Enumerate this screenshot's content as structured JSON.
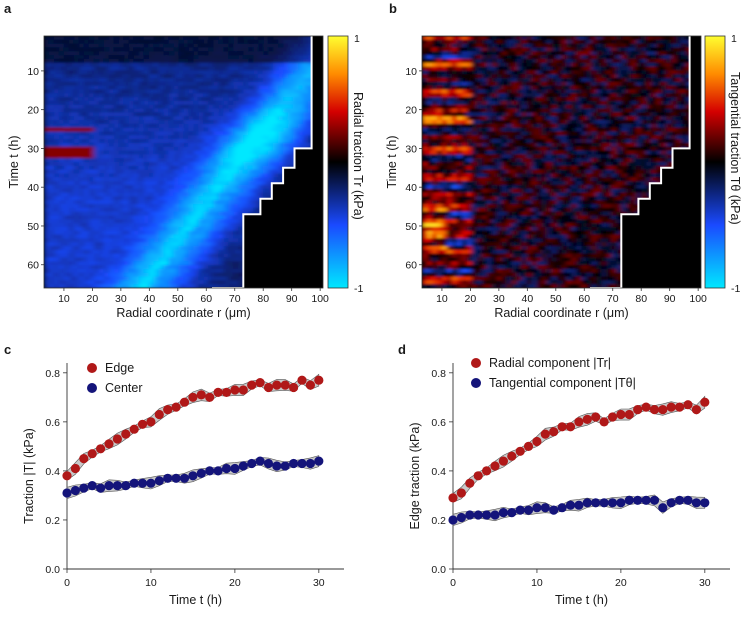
{
  "panels": {
    "a": {
      "letter": "a",
      "type": "heatmap",
      "xlabel": "Radial coordinate  r (μm)",
      "ylabel": "Time  t (h)",
      "colorbar_label": "Radial traction  Tr (kPa)",
      "colorbar_max": "1",
      "colorbar_min": "-1",
      "colormap": [
        "#00e8ff",
        "#1a4aff",
        "#000000",
        "#d40000",
        "#ff8c00",
        "#ffff30"
      ],
      "x_ticks": [
        10,
        20,
        30,
        40,
        50,
        60,
        70,
        80,
        90,
        100
      ],
      "y_ticks": [
        10,
        20,
        30,
        40,
        50,
        60
      ],
      "xlim": [
        3,
        101
      ],
      "ylim": [
        1,
        66
      ],
      "boundary_r": [
        97,
        97,
        91,
        87,
        83,
        79,
        73,
        62
      ],
      "boundary_t": [
        1,
        25,
        30,
        35,
        39,
        43,
        47,
        66
      ]
    },
    "b": {
      "letter": "b",
      "type": "heatmap",
      "xlabel": "Radial coordinate  r (μm)",
      "ylabel": "Time  t (h)",
      "colorbar_label": "Tangential traction  Tθ (kPa)",
      "colorbar_max": "1",
      "colorbar_min": "-1",
      "x_ticks": [
        10,
        20,
        30,
        40,
        50,
        60,
        70,
        80,
        90,
        100
      ],
      "y_ticks": [
        10,
        20,
        30,
        40,
        50,
        60
      ],
      "xlim": [
        3,
        101
      ],
      "ylim": [
        1,
        66
      ]
    },
    "c": {
      "letter": "c",
      "xlabel": "Time   t (h)",
      "ylabel": "Traction  |T| (kPa)",
      "x_ticks": [
        0,
        10,
        20,
        30
      ],
      "y_ticks": [
        0,
        0.2,
        0.4,
        0.6,
        0.8
      ],
      "xlim": [
        0,
        33
      ],
      "ylim": [
        0,
        0.84
      ]
    },
    "d": {
      "letter": "d",
      "xlabel": "Time   t (h)",
      "ylabel": "Edge traction (kPa)",
      "x_ticks": [
        0,
        10,
        20,
        30
      ],
      "y_ticks": [
        0,
        0.2,
        0.4,
        0.6,
        0.8
      ],
      "xlim": [
        0,
        33
      ],
      "ylim": [
        0,
        0.84
      ]
    }
  },
  "chart_data": [
    {
      "type": "heatmap",
      "title": "a",
      "xlabel": "Radial coordinate r (μm)",
      "ylabel": "Time t (h)",
      "colorbar": "Radial traction Tr (kPa)",
      "clim": [
        -1,
        1
      ],
      "xlim": [
        3,
        101
      ],
      "ylim": [
        1,
        66
      ],
      "description_values": {
        "peak_band_r_at_t": [
          [
            18,
            86
          ],
          [
            25,
            80
          ],
          [
            32,
            74
          ],
          [
            40,
            66
          ],
          [
            48,
            58
          ],
          [
            58,
            42
          ]
        ],
        "peak_value_approx": -0.85
      }
    },
    {
      "type": "heatmap",
      "title": "b",
      "xlabel": "Radial coordinate r (μm)",
      "ylabel": "Time t (h)",
      "colorbar": "Tangential traction Tθ (kPa)",
      "clim": [
        -1,
        1
      ],
      "xlim": [
        3,
        101
      ],
      "ylim": [
        1,
        66
      ]
    },
    {
      "type": "scatter",
      "title": "c",
      "xlabel": "Time t (h)",
      "ylabel": "Traction |T| (kPa)",
      "xlim": [
        0,
        33
      ],
      "ylim": [
        0,
        0.84
      ],
      "x": [
        0,
        1,
        2,
        3,
        4,
        5,
        6,
        7,
        8,
        9,
        10,
        11,
        12,
        13,
        14,
        15,
        16,
        17,
        18,
        19,
        20,
        21,
        22,
        23,
        24,
        25,
        26,
        27,
        28,
        29,
        30
      ],
      "series": [
        {
          "name": "Edge",
          "color": "#b01818",
          "values": [
            0.38,
            0.41,
            0.45,
            0.47,
            0.49,
            0.51,
            0.53,
            0.55,
            0.57,
            0.59,
            0.6,
            0.63,
            0.65,
            0.66,
            0.68,
            0.7,
            0.71,
            0.7,
            0.72,
            0.72,
            0.73,
            0.73,
            0.75,
            0.76,
            0.74,
            0.75,
            0.75,
            0.74,
            0.77,
            0.75,
            0.77
          ]
        },
        {
          "name": "Center",
          "color": "#14147a",
          "values": [
            0.31,
            0.32,
            0.33,
            0.34,
            0.33,
            0.34,
            0.34,
            0.34,
            0.35,
            0.35,
            0.35,
            0.36,
            0.37,
            0.37,
            0.37,
            0.38,
            0.39,
            0.4,
            0.4,
            0.41,
            0.41,
            0.42,
            0.43,
            0.44,
            0.43,
            0.42,
            0.42,
            0.43,
            0.43,
            0.43,
            0.44
          ]
        }
      ]
    },
    {
      "type": "scatter",
      "title": "d",
      "xlabel": "Time t (h)",
      "ylabel": "Edge traction (kPa)",
      "xlim": [
        0,
        33
      ],
      "ylim": [
        0,
        0.84
      ],
      "x": [
        0,
        1,
        2,
        3,
        4,
        5,
        6,
        7,
        8,
        9,
        10,
        11,
        12,
        13,
        14,
        15,
        16,
        17,
        18,
        19,
        20,
        21,
        22,
        23,
        24,
        25,
        26,
        27,
        28,
        29,
        30
      ],
      "series": [
        {
          "name": "Radial component  |Tr|",
          "color": "#b01818",
          "values": [
            0.29,
            0.31,
            0.35,
            0.38,
            0.4,
            0.42,
            0.44,
            0.46,
            0.48,
            0.5,
            0.52,
            0.55,
            0.56,
            0.58,
            0.58,
            0.6,
            0.61,
            0.62,
            0.6,
            0.62,
            0.63,
            0.63,
            0.65,
            0.66,
            0.65,
            0.65,
            0.66,
            0.66,
            0.67,
            0.65,
            0.68
          ]
        },
        {
          "name": "Tangential component  |Tθ|",
          "color": "#14147a",
          "values": [
            0.2,
            0.21,
            0.22,
            0.22,
            0.22,
            0.22,
            0.23,
            0.23,
            0.24,
            0.24,
            0.25,
            0.25,
            0.24,
            0.25,
            0.26,
            0.26,
            0.27,
            0.27,
            0.27,
            0.27,
            0.27,
            0.28,
            0.28,
            0.28,
            0.28,
            0.25,
            0.27,
            0.28,
            0.28,
            0.27,
            0.27
          ]
        }
      ]
    }
  ]
}
